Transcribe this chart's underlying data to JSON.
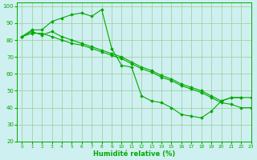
{
  "xlabel": "Humidité relative (%)",
  "background_color": "#cff0f0",
  "grid_color": "#99cc99",
  "line_color": "#00aa00",
  "xlim": [
    -0.5,
    23
  ],
  "ylim": [
    20,
    102
  ],
  "yticks": [
    20,
    30,
    40,
    50,
    60,
    70,
    80,
    90,
    100
  ],
  "xticks": [
    0,
    1,
    2,
    3,
    4,
    5,
    6,
    7,
    8,
    9,
    10,
    11,
    12,
    13,
    14,
    15,
    16,
    17,
    18,
    19,
    20,
    21,
    22,
    23
  ],
  "series": [
    {
      "x": [
        0,
        1,
        2,
        3,
        4,
        5,
        6,
        7,
        8,
        9,
        10,
        11,
        12,
        13,
        14,
        15,
        16,
        17,
        18,
        19,
        20,
        21,
        22
      ],
      "y": [
        82,
        86,
        86,
        91,
        93,
        95,
        96,
        94,
        98,
        75,
        65,
        64,
        47,
        44,
        43,
        40,
        36,
        35,
        34,
        38,
        44,
        46,
        46
      ]
    },
    {
      "x": [
        0,
        1,
        2,
        3,
        4,
        5,
        6,
        7,
        8,
        9,
        10,
        11,
        12,
        13,
        14,
        15,
        16,
        17,
        18,
        19,
        20,
        21,
        22,
        23
      ],
      "y": [
        82,
        85,
        83,
        85,
        82,
        80,
        78,
        76,
        74,
        72,
        70,
        67,
        64,
        62,
        59,
        57,
        54,
        52,
        50,
        47,
        44,
        46,
        46,
        46
      ]
    },
    {
      "x": [
        0,
        1,
        2,
        3,
        4,
        5,
        6,
        7,
        8,
        9,
        10,
        11,
        12,
        13,
        14,
        15,
        16,
        17,
        18,
        19,
        20,
        21,
        22,
        23
      ],
      "y": [
        82,
        84,
        84,
        82,
        80,
        78,
        77,
        75,
        73,
        71,
        69,
        66,
        63,
        61,
        58,
        56,
        53,
        51,
        49,
        46,
        43,
        42,
        40,
        40
      ]
    }
  ]
}
